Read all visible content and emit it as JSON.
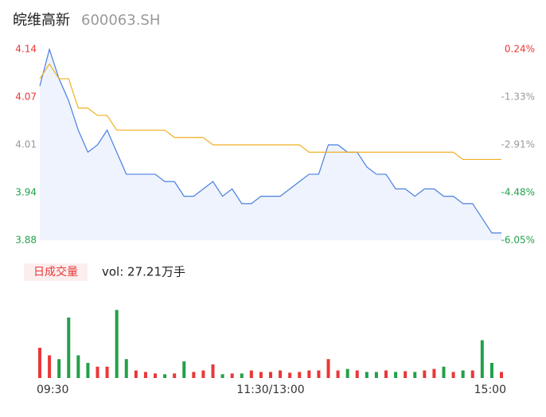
{
  "header": {
    "name": "皖维高新",
    "code": "600063.SH"
  },
  "chart_data": [
    {
      "type": "line",
      "x": [
        0,
        5,
        10,
        15,
        20,
        25,
        30,
        35,
        40,
        45,
        50,
        55,
        60,
        65,
        70,
        75,
        80,
        85,
        90,
        95,
        100,
        105,
        110,
        115,
        120,
        125,
        130,
        135,
        140,
        145,
        150,
        155,
        160,
        165,
        170,
        175,
        180,
        185,
        190,
        195,
        200,
        205,
        210,
        215,
        220,
        225,
        230,
        235,
        240
      ],
      "xlim": [
        0,
        240
      ],
      "series": [
        {
          "name": "price",
          "color": "#4a7fe0",
          "values": [
            4.09,
            4.14,
            4.1,
            4.07,
            4.03,
            4.0,
            4.01,
            4.03,
            4.0,
            3.97,
            3.97,
            3.97,
            3.97,
            3.96,
            3.96,
            3.94,
            3.94,
            3.95,
            3.96,
            3.94,
            3.95,
            3.93,
            3.93,
            3.94,
            3.94,
            3.94,
            3.95,
            3.96,
            3.97,
            3.97,
            4.01,
            4.01,
            4.0,
            4.0,
            3.98,
            3.97,
            3.97,
            3.95,
            3.95,
            3.94,
            3.95,
            3.95,
            3.94,
            3.94,
            3.93,
            3.93,
            3.91,
            3.89,
            3.89
          ]
        },
        {
          "name": "average",
          "color": "#f0b020",
          "values": [
            4.1,
            4.12,
            4.1,
            4.1,
            4.06,
            4.06,
            4.05,
            4.05,
            4.03,
            4.03,
            4.03,
            4.03,
            4.03,
            4.03,
            4.02,
            4.02,
            4.02,
            4.02,
            4.01,
            4.01,
            4.01,
            4.01,
            4.01,
            4.01,
            4.01,
            4.01,
            4.01,
            4.01,
            4.0,
            4.0,
            4.0,
            4.0,
            4.0,
            4.0,
            4.0,
            4.0,
            4.0,
            4.0,
            4.0,
            4.0,
            4.0,
            4.0,
            4.0,
            4.0,
            3.99,
            3.99,
            3.99,
            3.99,
            3.99
          ]
        }
      ],
      "ylim": [
        3.88,
        4.14
      ],
      "yticks": [
        4.14,
        {
          "value": 4.075,
          "label": "4.07"
        },
        4.01,
        {
          "value": 3.945,
          "label": "3.94"
        },
        3.88
      ],
      "y2lim": [
        -6.05,
        0.24
      ],
      "y2ticks": [
        {
          "value": 0.24,
          "label": "0.24%"
        },
        {
          "value": -1.33,
          "label": "-1.33%"
        },
        {
          "value": -2.91,
          "label": "-2.91%"
        },
        {
          "value": -4.48,
          "label": "-4.48%"
        },
        {
          "value": -6.05,
          "label": "-6.05%"
        }
      ],
      "fill": "#eef3fd"
    },
    {
      "type": "bar",
      "title": "日成交量",
      "annotation": "vol: 27.21万手",
      "x": [
        0,
        5,
        10,
        15,
        20,
        25,
        30,
        35,
        40,
        45,
        50,
        55,
        60,
        65,
        70,
        75,
        80,
        85,
        90,
        95,
        100,
        105,
        110,
        115,
        120,
        125,
        130,
        135,
        140,
        145,
        150,
        155,
        160,
        165,
        170,
        175,
        180,
        185,
        190,
        195,
        200,
        205,
        210,
        215,
        220,
        225,
        230,
        235,
        240
      ],
      "values": [
        40,
        30,
        25,
        80,
        30,
        20,
        15,
        15,
        90,
        25,
        10,
        8,
        6,
        5,
        6,
        22,
        8,
        10,
        18,
        5,
        6,
        6,
        10,
        8,
        8,
        10,
        7,
        8,
        10,
        10,
        25,
        10,
        12,
        10,
        8,
        8,
        10,
        8,
        9,
        8,
        10,
        12,
        15,
        8,
        10,
        10,
        50,
        20,
        8
      ],
      "up_color": "#e83838",
      "down_color": "#22a04a",
      "ylim": [
        0,
        100
      ],
      "xlim": [
        0,
        240
      ],
      "xticks": [
        {
          "value": 0,
          "label": "09:30"
        },
        {
          "value": 120,
          "label": "11:30/13:00"
        },
        {
          "value": 240,
          "label": "15:00"
        }
      ]
    }
  ]
}
